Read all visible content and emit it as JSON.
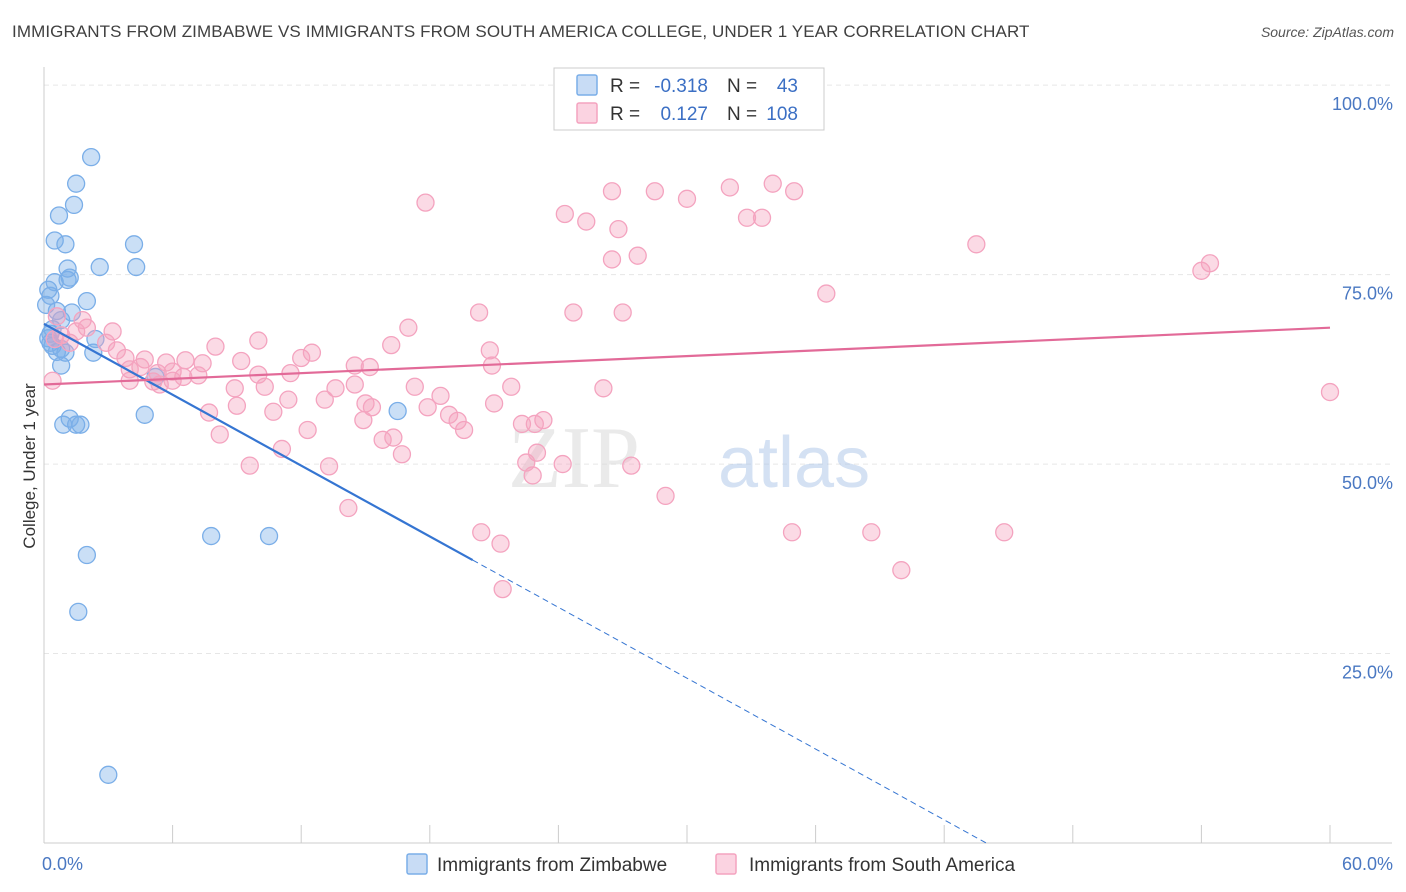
{
  "chart_data": {
    "type": "scatter",
    "title": "IMMIGRANTS FROM ZIMBABWE VS IMMIGRANTS FROM SOUTH AMERICA COLLEGE, UNDER 1 YEAR CORRELATION CHART",
    "source": "Source: ZipAtlas.com",
    "ylabel": "College, Under 1 year",
    "xlabel": "",
    "xlim": [
      0,
      60
    ],
    "ylim": [
      0,
      102
    ],
    "x_ticks": [
      {
        "value": 0,
        "label": "0.0%"
      },
      {
        "value": 60,
        "label": "60.0%"
      }
    ],
    "y_ticks": [
      {
        "value": 25,
        "label": "25.0%"
      },
      {
        "value": 50,
        "label": "50.0%"
      },
      {
        "value": 75,
        "label": "75.0%"
      },
      {
        "value": 100,
        "label": "100.0%"
      }
    ],
    "watermark": {
      "zip": "ZIP",
      "atlas": "atlas"
    },
    "legend": {
      "r_label": "R =",
      "n_label": "N =",
      "entries": [
        {
          "r": "-0.318",
          "n": "43"
        },
        {
          "r": "0.127",
          "n": "108"
        }
      ]
    },
    "series": [
      {
        "name": "Immigrants from Zimbabwe",
        "color": "#7aaee8",
        "line_color": "#3575d2",
        "r": -0.318,
        "n": 43,
        "trend": {
          "x0": 0,
          "y0": 68.5,
          "x_solid_end": 20,
          "x1": 60,
          "y1": -25
        },
        "points": [
          [
            2.2,
            90.5
          ],
          [
            1.5,
            87
          ],
          [
            1.4,
            84.2
          ],
          [
            0.7,
            82.8
          ],
          [
            0.5,
            79.5
          ],
          [
            1.0,
            79.0
          ],
          [
            4.2,
            79.0
          ],
          [
            2.6,
            76.0
          ],
          [
            4.3,
            76.0
          ],
          [
            1.1,
            75.8
          ],
          [
            1.2,
            74.6
          ],
          [
            1.1,
            74.3
          ],
          [
            0.5,
            74.0
          ],
          [
            0.2,
            73.0
          ],
          [
            0.3,
            72.2
          ],
          [
            0.1,
            71.0
          ],
          [
            2.0,
            71.5
          ],
          [
            0.6,
            70.2
          ],
          [
            1.3,
            70.0
          ],
          [
            0.8,
            69.0
          ],
          [
            0.4,
            67.8
          ],
          [
            0.3,
            67.2
          ],
          [
            0.2,
            66.6
          ],
          [
            0.3,
            66.0
          ],
          [
            2.4,
            66.5
          ],
          [
            0.4,
            65.6
          ],
          [
            0.8,
            65.2
          ],
          [
            0.6,
            64.8
          ],
          [
            1.0,
            64.7
          ],
          [
            2.3,
            64.7
          ],
          [
            0.8,
            63.0
          ],
          [
            1.2,
            56.0
          ],
          [
            0.9,
            55.2
          ],
          [
            1.5,
            55.2
          ],
          [
            1.7,
            55.2
          ],
          [
            4.7,
            56.5
          ],
          [
            16.5,
            57.0
          ],
          [
            7.8,
            40.5
          ],
          [
            10.5,
            40.5
          ],
          [
            2.0,
            38.0
          ],
          [
            1.6,
            30.5
          ],
          [
            3.0,
            9.0
          ],
          [
            5.2,
            61.5
          ]
        ]
      },
      {
        "name": "Immigrants from South America",
        "color": "#f4a3bf",
        "line_color": "#e26a98",
        "r": 0.127,
        "n": 108,
        "trend": {
          "x0": 0,
          "y0": 60.5,
          "x1": 60,
          "y1": 68.0
        },
        "points": [
          [
            35.8,
            100.5
          ],
          [
            26.5,
            86.0
          ],
          [
            28.5,
            86.0
          ],
          [
            30.0,
            85.0
          ],
          [
            32.0,
            86.5
          ],
          [
            32.8,
            82.5
          ],
          [
            33.5,
            82.5
          ],
          [
            34.0,
            87.0
          ],
          [
            35.0,
            86.0
          ],
          [
            17.8,
            84.5
          ],
          [
            24.3,
            83.0
          ],
          [
            25.3,
            82.0
          ],
          [
            26.8,
            81.0
          ],
          [
            26.5,
            77.0
          ],
          [
            27.7,
            77.5
          ],
          [
            43.5,
            79.0
          ],
          [
            54.0,
            75.5
          ],
          [
            54.4,
            76.5
          ],
          [
            36.5,
            72.5
          ],
          [
            20.3,
            70.0
          ],
          [
            24.7,
            70.0
          ],
          [
            27.0,
            70.0
          ],
          [
            17.0,
            68.0
          ],
          [
            0.6,
            69.5
          ],
          [
            1.8,
            69.0
          ],
          [
            2.0,
            68.0
          ],
          [
            3.2,
            67.5
          ],
          [
            1.5,
            67.5
          ],
          [
            0.8,
            67.0
          ],
          [
            0.5,
            66.5
          ],
          [
            1.2,
            66.0
          ],
          [
            2.9,
            66.0
          ],
          [
            3.4,
            65.0
          ],
          [
            10.0,
            66.3
          ],
          [
            8.0,
            65.5
          ],
          [
            12.0,
            64.0
          ],
          [
            16.2,
            65.7
          ],
          [
            20.8,
            65.0
          ],
          [
            12.5,
            64.7
          ],
          [
            3.8,
            64.0
          ],
          [
            4.7,
            63.8
          ],
          [
            5.7,
            63.4
          ],
          [
            6.6,
            63.7
          ],
          [
            7.4,
            63.3
          ],
          [
            9.2,
            63.6
          ],
          [
            4.0,
            62.5
          ],
          [
            5.3,
            62.0
          ],
          [
            6.0,
            62.2
          ],
          [
            6.5,
            61.5
          ],
          [
            7.2,
            61.7
          ],
          [
            10.0,
            61.8
          ],
          [
            11.5,
            62.0
          ],
          [
            14.5,
            63.0
          ],
          [
            15.2,
            62.8
          ],
          [
            20.9,
            63.0
          ],
          [
            0.4,
            61.0
          ],
          [
            4.5,
            62.8
          ],
          [
            5.1,
            60.9
          ],
          [
            5.4,
            60.5
          ],
          [
            8.9,
            60.0
          ],
          [
            10.3,
            60.2
          ],
          [
            13.6,
            60.0
          ],
          [
            14.5,
            60.5
          ],
          [
            17.3,
            60.2
          ],
          [
            18.5,
            59.0
          ],
          [
            11.4,
            58.5
          ],
          [
            13.1,
            58.5
          ],
          [
            15.0,
            58.0
          ],
          [
            15.3,
            57.5
          ],
          [
            17.9,
            57.5
          ],
          [
            7.7,
            56.8
          ],
          [
            9.0,
            57.7
          ],
          [
            10.7,
            56.9
          ],
          [
            18.9,
            56.5
          ],
          [
            19.3,
            55.7
          ],
          [
            14.9,
            55.8
          ],
          [
            22.3,
            55.3
          ],
          [
            22.9,
            55.3
          ],
          [
            23.3,
            55.8
          ],
          [
            26.1,
            60.0
          ],
          [
            12.3,
            54.5
          ],
          [
            19.6,
            54.5
          ],
          [
            8.2,
            53.9
          ],
          [
            15.8,
            53.2
          ],
          [
            16.3,
            53.5
          ],
          [
            21.0,
            58.0
          ],
          [
            21.8,
            60.2
          ],
          [
            11.1,
            52.0
          ],
          [
            16.7,
            51.3
          ],
          [
            13.3,
            49.7
          ],
          [
            9.6,
            49.8
          ],
          [
            22.5,
            50.2
          ],
          [
            23.0,
            51.5
          ],
          [
            24.2,
            50.0
          ],
          [
            22.8,
            48.5
          ],
          [
            27.4,
            49.8
          ],
          [
            29.0,
            45.8
          ],
          [
            14.2,
            44.2
          ],
          [
            20.4,
            41.0
          ],
          [
            21.3,
            39.5
          ],
          [
            34.9,
            41.0
          ],
          [
            38.6,
            41.0
          ],
          [
            44.8,
            41.0
          ],
          [
            40.0,
            36.0
          ],
          [
            21.4,
            33.5
          ],
          [
            60.0,
            59.5
          ],
          [
            4.0,
            61.0
          ],
          [
            6.0,
            61.0
          ]
        ]
      }
    ]
  }
}
